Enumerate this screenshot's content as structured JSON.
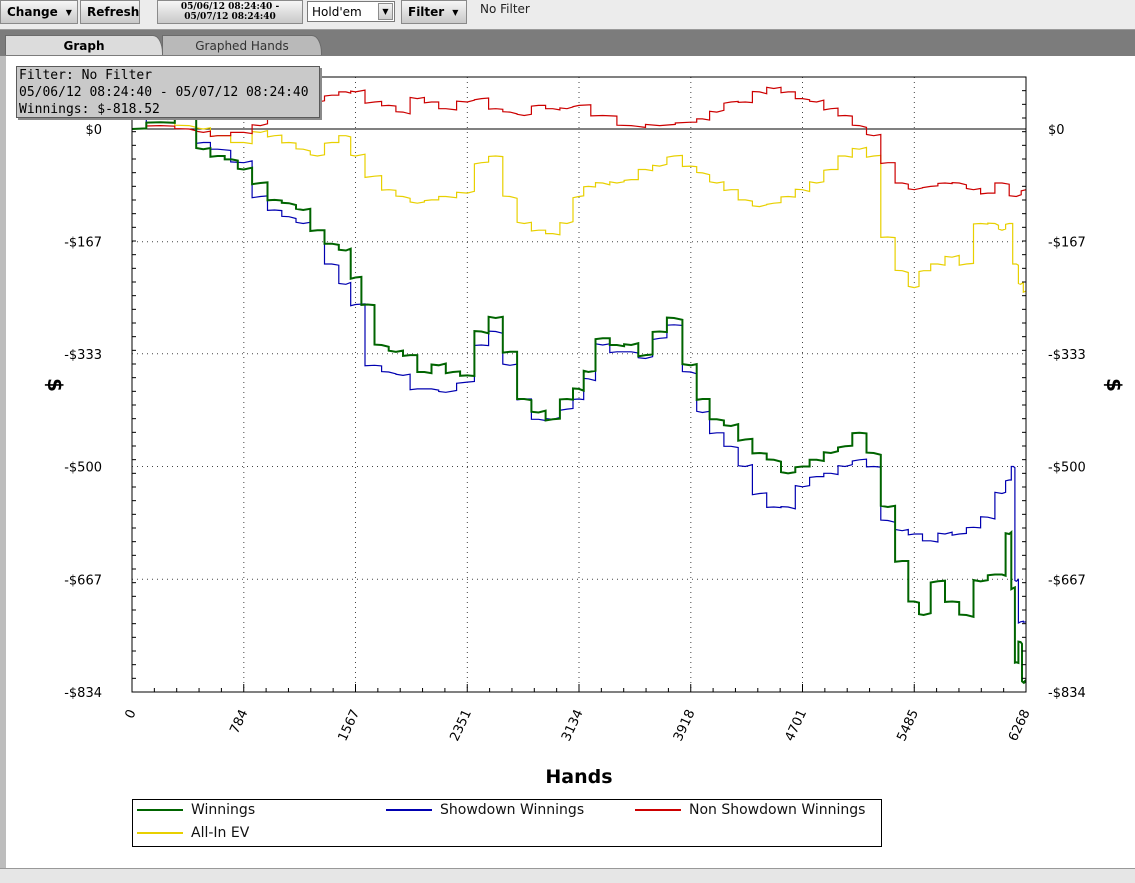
{
  "toolbar": {
    "change_label": "Change",
    "refresh_label": "Refresh",
    "date_from": "05/06/12 08:24:40 -",
    "date_to": "05/07/12 08:24:40",
    "game_select": "Hold'em",
    "filter_label": "Filter",
    "filter_status": "No Filter"
  },
  "tabs": [
    {
      "label": "Graph",
      "active": true
    },
    {
      "label": "Graphed Hands",
      "active": false
    }
  ],
  "tooltip": {
    "line1": "Filter: No Filter",
    "line2": "05/06/12 08:24:40 - 05/07/12 08:24:40",
    "line3": "Winnings: $-818.52"
  },
  "colors": {
    "winnings": "#006400",
    "showdown": "#0000b0",
    "non_showdown": "#cc0000",
    "allin_ev": "#e8d000"
  },
  "chart_data": {
    "type": "line",
    "title": "",
    "xlabel": "Hands",
    "ylabel": "$",
    "xlim": [
      0,
      6268
    ],
    "ylim": [
      -834,
      77
    ],
    "x_ticks": [
      "0",
      "784",
      "1567",
      "2351",
      "3134",
      "3918",
      "4701",
      "5485",
      "6268"
    ],
    "y_ticks": [
      "$0",
      "-$167",
      "-$333",
      "-$500",
      "-$667",
      "-$834"
    ],
    "grid": true,
    "legend_position": "bottom",
    "series": [
      {
        "name": "Winnings",
        "color": "#006400",
        "points": [
          [
            0,
            0
          ],
          [
            200,
            10
          ],
          [
            400,
            20
          ],
          [
            500,
            -30
          ],
          [
            600,
            -40
          ],
          [
            700,
            -45
          ],
          [
            784,
            -60
          ],
          [
            900,
            -80
          ],
          [
            1000,
            -105
          ],
          [
            1100,
            -110
          ],
          [
            1200,
            -120
          ],
          [
            1300,
            -150
          ],
          [
            1400,
            -170
          ],
          [
            1500,
            -180
          ],
          [
            1567,
            -220
          ],
          [
            1650,
            -260
          ],
          [
            1750,
            -320
          ],
          [
            1850,
            -330
          ],
          [
            1950,
            -335
          ],
          [
            2050,
            -360
          ],
          [
            2150,
            -350
          ],
          [
            2250,
            -360
          ],
          [
            2351,
            -365
          ],
          [
            2450,
            -300
          ],
          [
            2550,
            -280
          ],
          [
            2650,
            -330
          ],
          [
            2750,
            -400
          ],
          [
            2850,
            -420
          ],
          [
            2950,
            -430
          ],
          [
            3050,
            -400
          ],
          [
            3134,
            -385
          ],
          [
            3200,
            -360
          ],
          [
            3300,
            -310
          ],
          [
            3400,
            -320
          ],
          [
            3500,
            -320
          ],
          [
            3600,
            -335
          ],
          [
            3700,
            -300
          ],
          [
            3800,
            -280
          ],
          [
            3918,
            -350
          ],
          [
            4000,
            -400
          ],
          [
            4100,
            -430
          ],
          [
            4200,
            -440
          ],
          [
            4300,
            -460
          ],
          [
            4400,
            -480
          ],
          [
            4500,
            -490
          ],
          [
            4600,
            -510
          ],
          [
            4701,
            -500
          ],
          [
            4800,
            -490
          ],
          [
            4900,
            -480
          ],
          [
            5000,
            -470
          ],
          [
            5100,
            -450
          ],
          [
            5200,
            -480
          ],
          [
            5300,
            -560
          ],
          [
            5400,
            -640
          ],
          [
            5485,
            -700
          ],
          [
            5550,
            -720
          ],
          [
            5650,
            -670
          ],
          [
            5750,
            -700
          ],
          [
            5850,
            -720
          ],
          [
            5950,
            -670
          ],
          [
            6050,
            -660
          ],
          [
            6100,
            -660
          ],
          [
            6150,
            -600
          ],
          [
            6180,
            -680
          ],
          [
            6200,
            -790
          ],
          [
            6230,
            -760
          ],
          [
            6250,
            -820
          ],
          [
            6268,
            -818.52
          ]
        ]
      },
      {
        "name": "Showdown Winnings",
        "color": "#0000b0",
        "points": [
          [
            0,
            0
          ],
          [
            200,
            15
          ],
          [
            300,
            20
          ],
          [
            400,
            15
          ],
          [
            500,
            -20
          ],
          [
            600,
            -30
          ],
          [
            784,
            -50
          ],
          [
            900,
            -100
          ],
          [
            1000,
            -120
          ],
          [
            1100,
            -130
          ],
          [
            1200,
            -140
          ],
          [
            1300,
            -150
          ],
          [
            1400,
            -200
          ],
          [
            1500,
            -230
          ],
          [
            1567,
            -260
          ],
          [
            1700,
            -350
          ],
          [
            1800,
            -360
          ],
          [
            1900,
            -365
          ],
          [
            2000,
            -385
          ],
          [
            2100,
            -385
          ],
          [
            2200,
            -390
          ],
          [
            2351,
            -375
          ],
          [
            2450,
            -320
          ],
          [
            2550,
            -300
          ],
          [
            2650,
            -350
          ],
          [
            2750,
            -400
          ],
          [
            2850,
            -430
          ],
          [
            2950,
            -430
          ],
          [
            3050,
            -415
          ],
          [
            3134,
            -400
          ],
          [
            3200,
            -370
          ],
          [
            3300,
            -320
          ],
          [
            3400,
            -330
          ],
          [
            3500,
            -330
          ],
          [
            3600,
            -340
          ],
          [
            3700,
            -310
          ],
          [
            3800,
            -290
          ],
          [
            3918,
            -360
          ],
          [
            4000,
            -420
          ],
          [
            4100,
            -450
          ],
          [
            4200,
            -470
          ],
          [
            4300,
            -500
          ],
          [
            4400,
            -540
          ],
          [
            4500,
            -560
          ],
          [
            4600,
            -560
          ],
          [
            4701,
            -530
          ],
          [
            4800,
            -515
          ],
          [
            4900,
            -510
          ],
          [
            5000,
            -500
          ],
          [
            5100,
            -490
          ],
          [
            5200,
            -500
          ],
          [
            5300,
            -580
          ],
          [
            5400,
            -595
          ],
          [
            5485,
            -600
          ],
          [
            5600,
            -610
          ],
          [
            5700,
            -600
          ],
          [
            5800,
            -600
          ],
          [
            5900,
            -590
          ],
          [
            6000,
            -575
          ],
          [
            6100,
            -540
          ],
          [
            6150,
            -520
          ],
          [
            6180,
            -500
          ],
          [
            6200,
            -670
          ],
          [
            6230,
            -730
          ],
          [
            6268,
            -730
          ]
        ]
      },
      {
        "name": "Non Showdown Winnings",
        "color": "#cc0000",
        "points": [
          [
            0,
            0
          ],
          [
            200,
            5
          ],
          [
            400,
            0
          ],
          [
            500,
            -5
          ],
          [
            600,
            -10
          ],
          [
            784,
            -5
          ],
          [
            900,
            5
          ],
          [
            1000,
            20
          ],
          [
            1100,
            25
          ],
          [
            1200,
            30
          ],
          [
            1300,
            40
          ],
          [
            1400,
            50
          ],
          [
            1500,
            55
          ],
          [
            1567,
            55
          ],
          [
            1700,
            40
          ],
          [
            1800,
            35
          ],
          [
            1900,
            25
          ],
          [
            2000,
            45
          ],
          [
            2100,
            40
          ],
          [
            2200,
            30
          ],
          [
            2351,
            40
          ],
          [
            2450,
            45
          ],
          [
            2550,
            30
          ],
          [
            2650,
            25
          ],
          [
            2750,
            20
          ],
          [
            2850,
            35
          ],
          [
            2950,
            30
          ],
          [
            3050,
            30
          ],
          [
            3134,
            35
          ],
          [
            3300,
            20
          ],
          [
            3500,
            5
          ],
          [
            3700,
            5
          ],
          [
            3918,
            10
          ],
          [
            4000,
            15
          ],
          [
            4100,
            25
          ],
          [
            4200,
            40
          ],
          [
            4300,
            40
          ],
          [
            4400,
            55
          ],
          [
            4500,
            60
          ],
          [
            4600,
            55
          ],
          [
            4701,
            45
          ],
          [
            4800,
            40
          ],
          [
            4900,
            30
          ],
          [
            5000,
            20
          ],
          [
            5100,
            5
          ],
          [
            5200,
            -10
          ],
          [
            5300,
            -50
          ],
          [
            5400,
            -80
          ],
          [
            5485,
            -90
          ],
          [
            5600,
            -85
          ],
          [
            5700,
            -80
          ],
          [
            5800,
            -80
          ],
          [
            5900,
            -90
          ],
          [
            6000,
            -95
          ],
          [
            6100,
            -80
          ],
          [
            6200,
            -100
          ],
          [
            6268,
            -90
          ]
        ]
      },
      {
        "name": "All-In EV",
        "color": "#e8d000",
        "points": [
          [
            0,
            0
          ],
          [
            200,
            10
          ],
          [
            400,
            5
          ],
          [
            500,
            0
          ],
          [
            600,
            -10
          ],
          [
            784,
            -20
          ],
          [
            900,
            -5
          ],
          [
            1000,
            -10
          ],
          [
            1100,
            -20
          ],
          [
            1200,
            -30
          ],
          [
            1300,
            -40
          ],
          [
            1400,
            -20
          ],
          [
            1500,
            -10
          ],
          [
            1567,
            -40
          ],
          [
            1700,
            -70
          ],
          [
            1800,
            -90
          ],
          [
            1900,
            -100
          ],
          [
            2000,
            -110
          ],
          [
            2100,
            -105
          ],
          [
            2200,
            -100
          ],
          [
            2351,
            -95
          ],
          [
            2450,
            -50
          ],
          [
            2550,
            -40
          ],
          [
            2650,
            -100
          ],
          [
            2750,
            -140
          ],
          [
            2850,
            -150
          ],
          [
            2950,
            -155
          ],
          [
            3050,
            -140
          ],
          [
            3134,
            -100
          ],
          [
            3200,
            -85
          ],
          [
            3300,
            -80
          ],
          [
            3400,
            -80
          ],
          [
            3500,
            -75
          ],
          [
            3600,
            -60
          ],
          [
            3700,
            -55
          ],
          [
            3800,
            -40
          ],
          [
            3918,
            -55
          ],
          [
            4000,
            -65
          ],
          [
            4100,
            -80
          ],
          [
            4200,
            -90
          ],
          [
            4300,
            -105
          ],
          [
            4400,
            -115
          ],
          [
            4500,
            -110
          ],
          [
            4600,
            -100
          ],
          [
            4701,
            -90
          ],
          [
            4800,
            -80
          ],
          [
            4900,
            -60
          ],
          [
            5000,
            -40
          ],
          [
            5100,
            -30
          ],
          [
            5200,
            -40
          ],
          [
            5300,
            -160
          ],
          [
            5400,
            -210
          ],
          [
            5485,
            -235
          ],
          [
            5550,
            -210
          ],
          [
            5650,
            -200
          ],
          [
            5750,
            -190
          ],
          [
            5850,
            -200
          ],
          [
            5950,
            -140
          ],
          [
            6050,
            -140
          ],
          [
            6100,
            -150
          ],
          [
            6150,
            -140
          ],
          [
            6200,
            -200
          ],
          [
            6230,
            -230
          ],
          [
            6268,
            -240
          ]
        ]
      }
    ]
  }
}
